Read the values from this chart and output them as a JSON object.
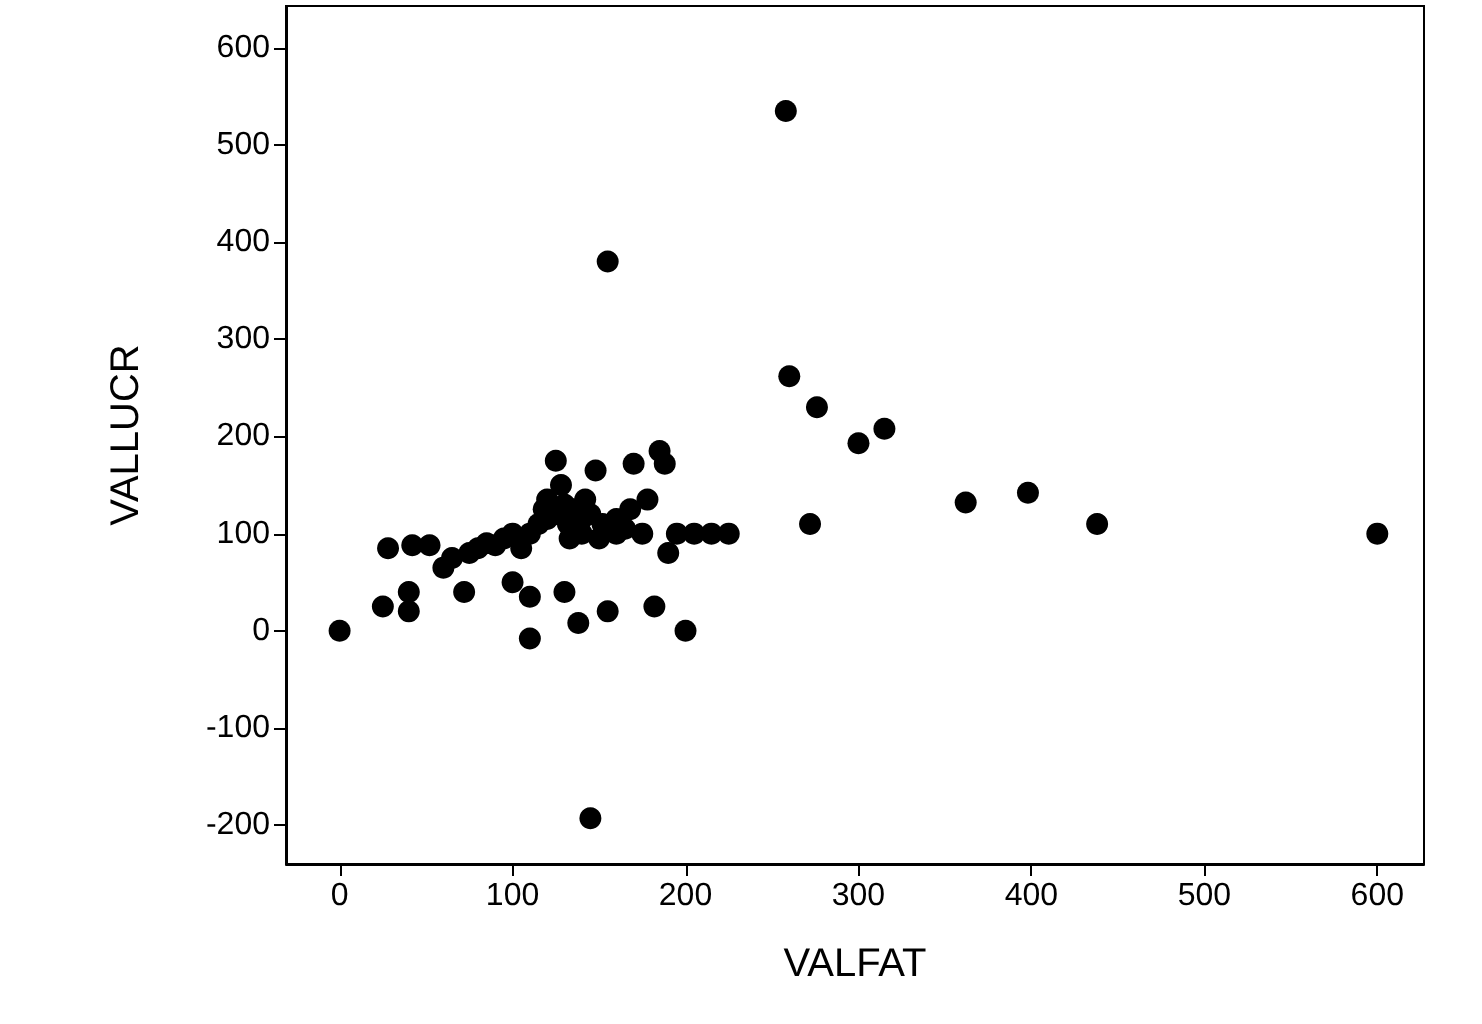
{
  "chart_data": {
    "type": "scatter",
    "xlabel": "VALFAT",
    "ylabel": "VALLUCR",
    "marker": "circle",
    "grid": false,
    "xlim": [
      -31,
      627
    ],
    "xticks": [
      0,
      100,
      200,
      300,
      400,
      500,
      600
    ],
    "ylim": [
      -240,
      643
    ],
    "yticks": [
      -200,
      -100,
      0,
      100,
      200,
      300,
      400,
      500,
      600
    ],
    "series": [
      {
        "color": "#000000",
        "x": [
          0,
          25,
          28,
          40,
          40,
          42,
          52,
          60,
          65,
          72,
          75,
          80,
          85,
          90,
          95,
          100,
          100,
          105,
          110,
          110,
          110,
          115,
          118,
          120,
          120,
          125,
          125,
          128,
          130,
          130,
          132,
          133,
          135,
          138,
          140,
          140,
          142,
          145,
          145,
          148,
          150,
          152,
          155,
          155,
          160,
          160,
          165,
          168,
          170,
          175,
          178,
          182,
          185,
          188,
          190,
          195,
          200,
          205,
          215,
          225,
          258,
          260,
          272,
          276,
          300,
          315,
          362,
          398,
          438,
          600
        ],
        "values": [
          0,
          25,
          85,
          40,
          20,
          88,
          88,
          65,
          75,
          40,
          80,
          85,
          90,
          88,
          95,
          100,
          50,
          85,
          35,
          -8,
          100,
          110,
          125,
          115,
          135,
          120,
          175,
          150,
          40,
          130,
          110,
          95,
          125,
          8,
          100,
          115,
          135,
          -193,
          120,
          165,
          95,
          110,
          20,
          380,
          115,
          100,
          105,
          125,
          172,
          100,
          135,
          25,
          185,
          172,
          80,
          100,
          0,
          100,
          100,
          100,
          535,
          262,
          110,
          230,
          193,
          208,
          132,
          142,
          110,
          100
        ]
      }
    ]
  }
}
